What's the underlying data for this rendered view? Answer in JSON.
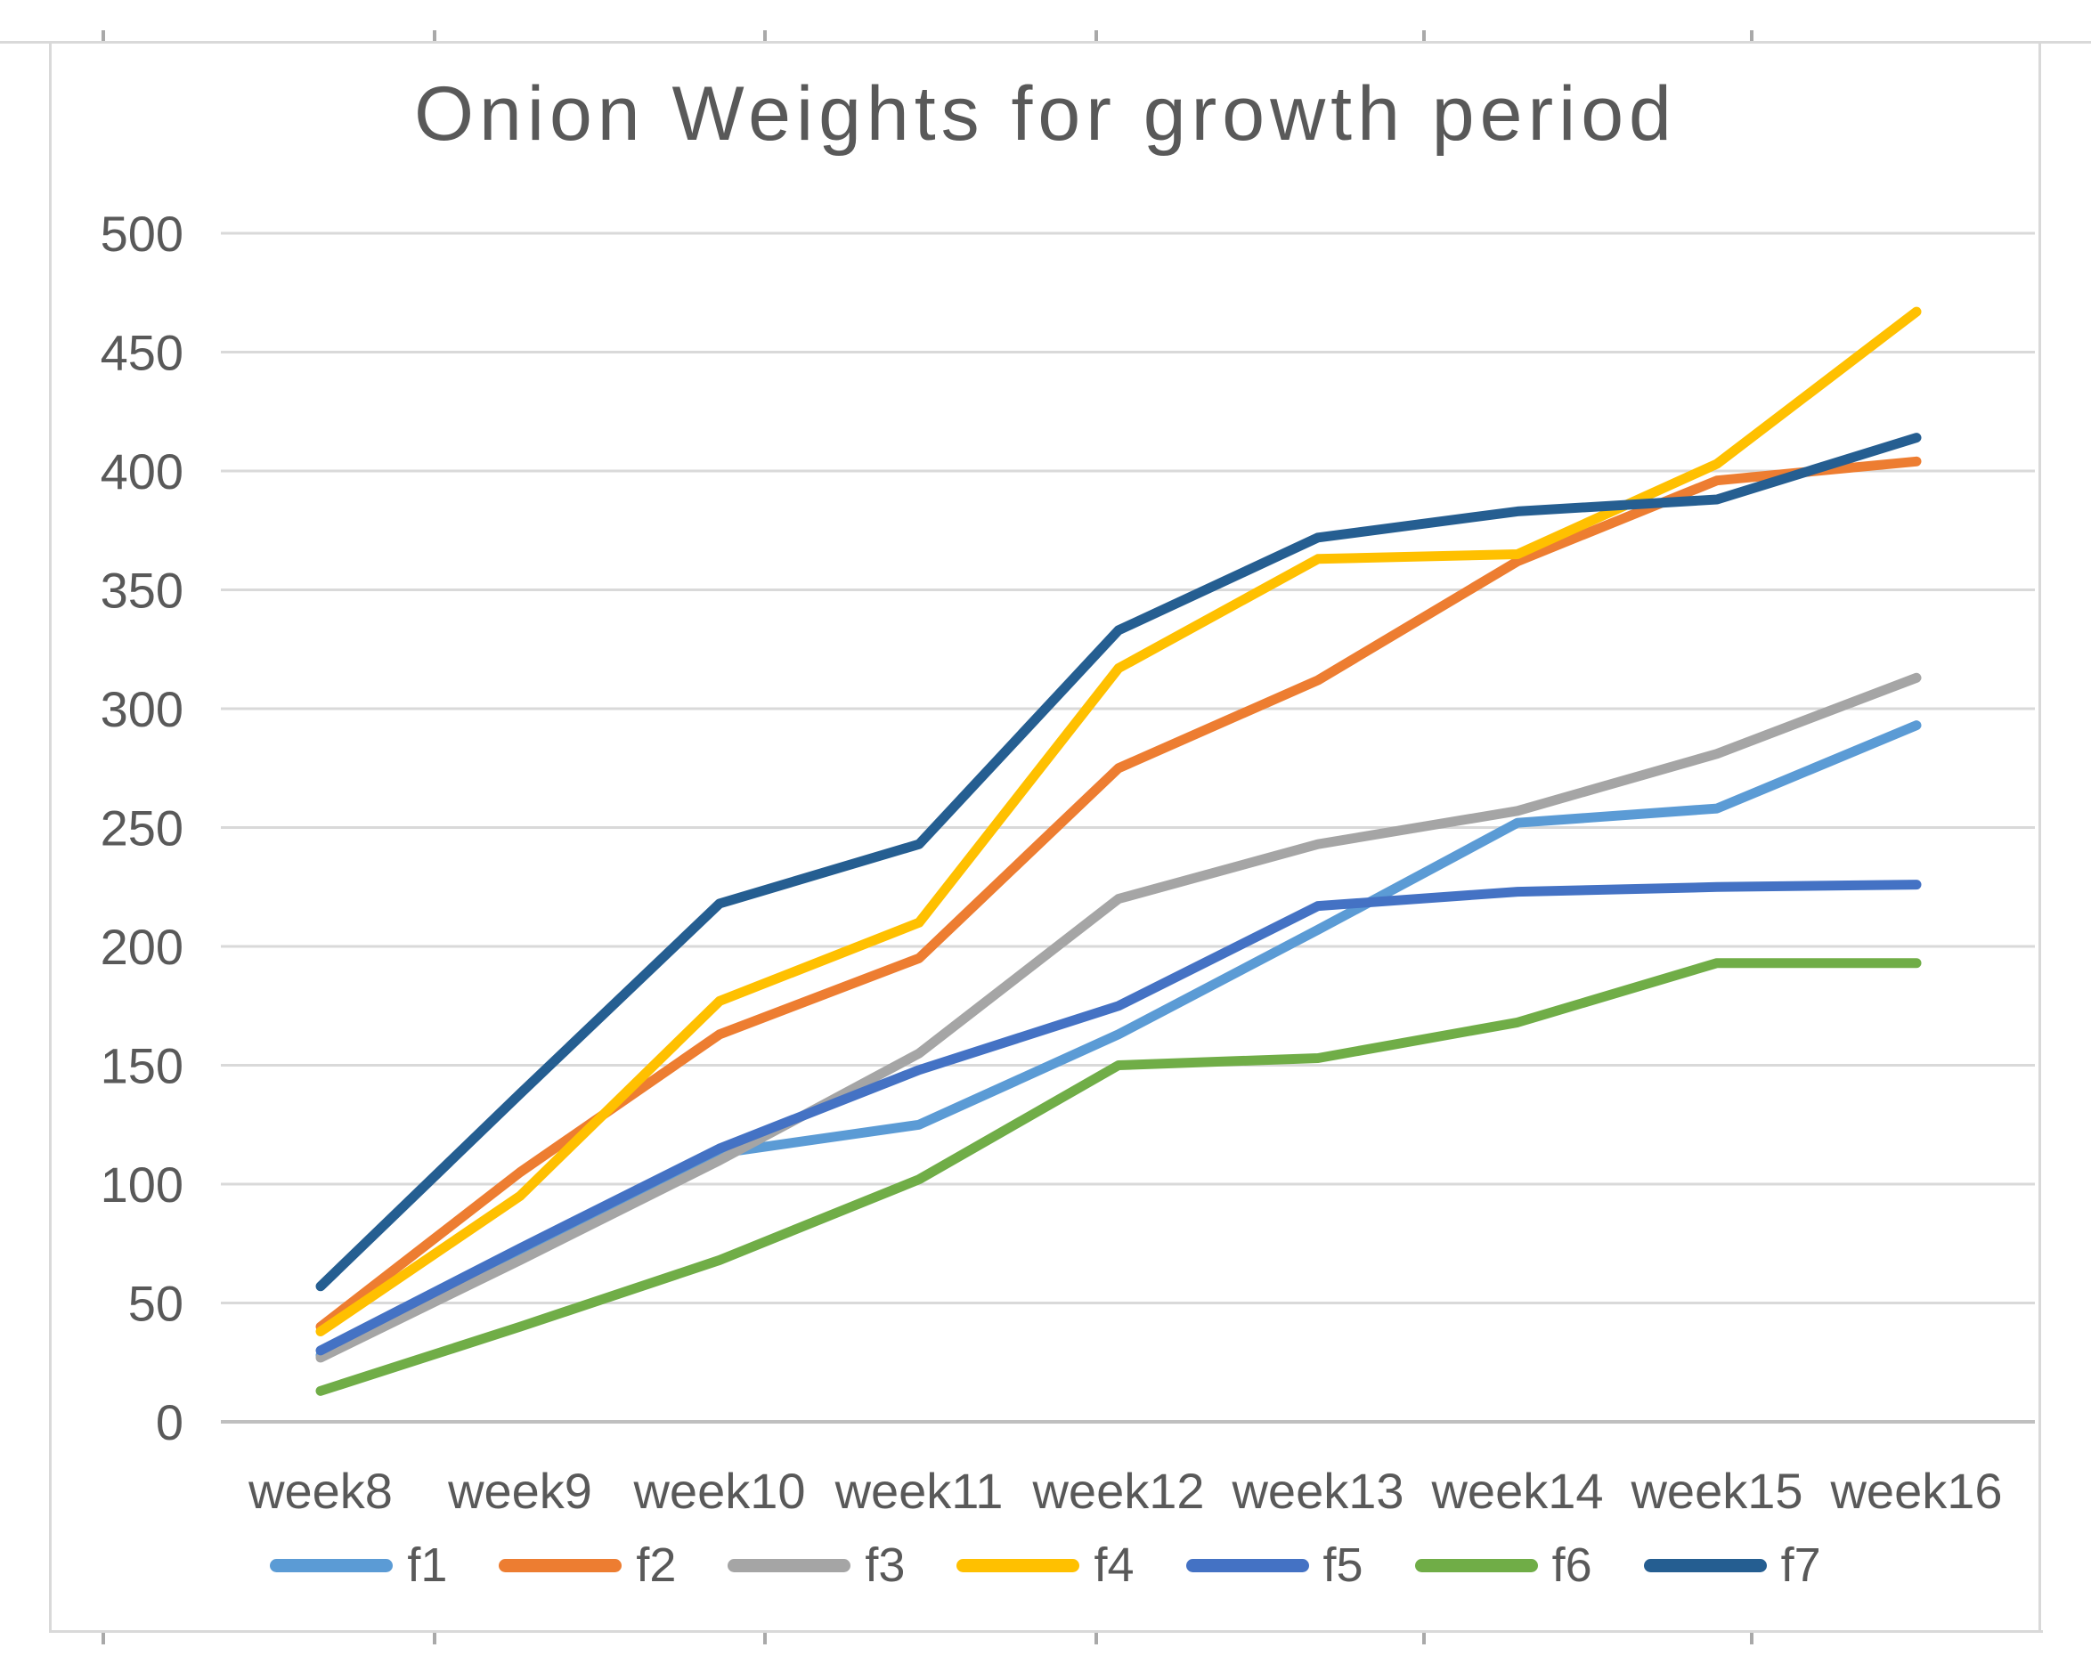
{
  "chart_data": {
    "type": "line",
    "title": "Onion Weights for growth period",
    "categories": [
      "week8",
      "week9",
      "week10",
      "week11",
      "week12",
      "week13",
      "week14",
      "week15",
      "week16"
    ],
    "series": [
      {
        "name": "f1",
        "color": "#5B9BD5",
        "values": [
          28,
          70,
          113,
          125,
          163,
          207,
          252,
          258,
          293
        ]
      },
      {
        "name": "f2",
        "color": "#ED7D31",
        "values": [
          40,
          105,
          163,
          195,
          275,
          312,
          362,
          396,
          404
        ]
      },
      {
        "name": "f3",
        "color": "#A5A5A5",
        "values": [
          27,
          68,
          110,
          155,
          220,
          243,
          257,
          281,
          313
        ]
      },
      {
        "name": "f4",
        "color": "#FFC000",
        "values": [
          38,
          95,
          177,
          210,
          317,
          363,
          365,
          403,
          467
        ]
      },
      {
        "name": "f5",
        "color": "#4472C4",
        "values": [
          30,
          73,
          115,
          148,
          175,
          217,
          223,
          225,
          226
        ]
      },
      {
        "name": "f6",
        "color": "#70AD47",
        "values": [
          13,
          40,
          68,
          102,
          150,
          153,
          168,
          193,
          193
        ]
      },
      {
        "name": "f7",
        "color": "#255E91",
        "values": [
          57,
          138,
          218,
          243,
          333,
          372,
          383,
          388,
          414
        ]
      }
    ],
    "xlabel": "",
    "ylabel": "",
    "ylim": [
      0,
      500
    ],
    "yticks": [
      0,
      50,
      100,
      150,
      200,
      250,
      300,
      350,
      400,
      450,
      500
    ],
    "grid": true,
    "legend_position": "bottom",
    "text_color": "#595959",
    "gridline_color": "#D9D9D9",
    "axis_line_color": "#BFBFBF"
  }
}
